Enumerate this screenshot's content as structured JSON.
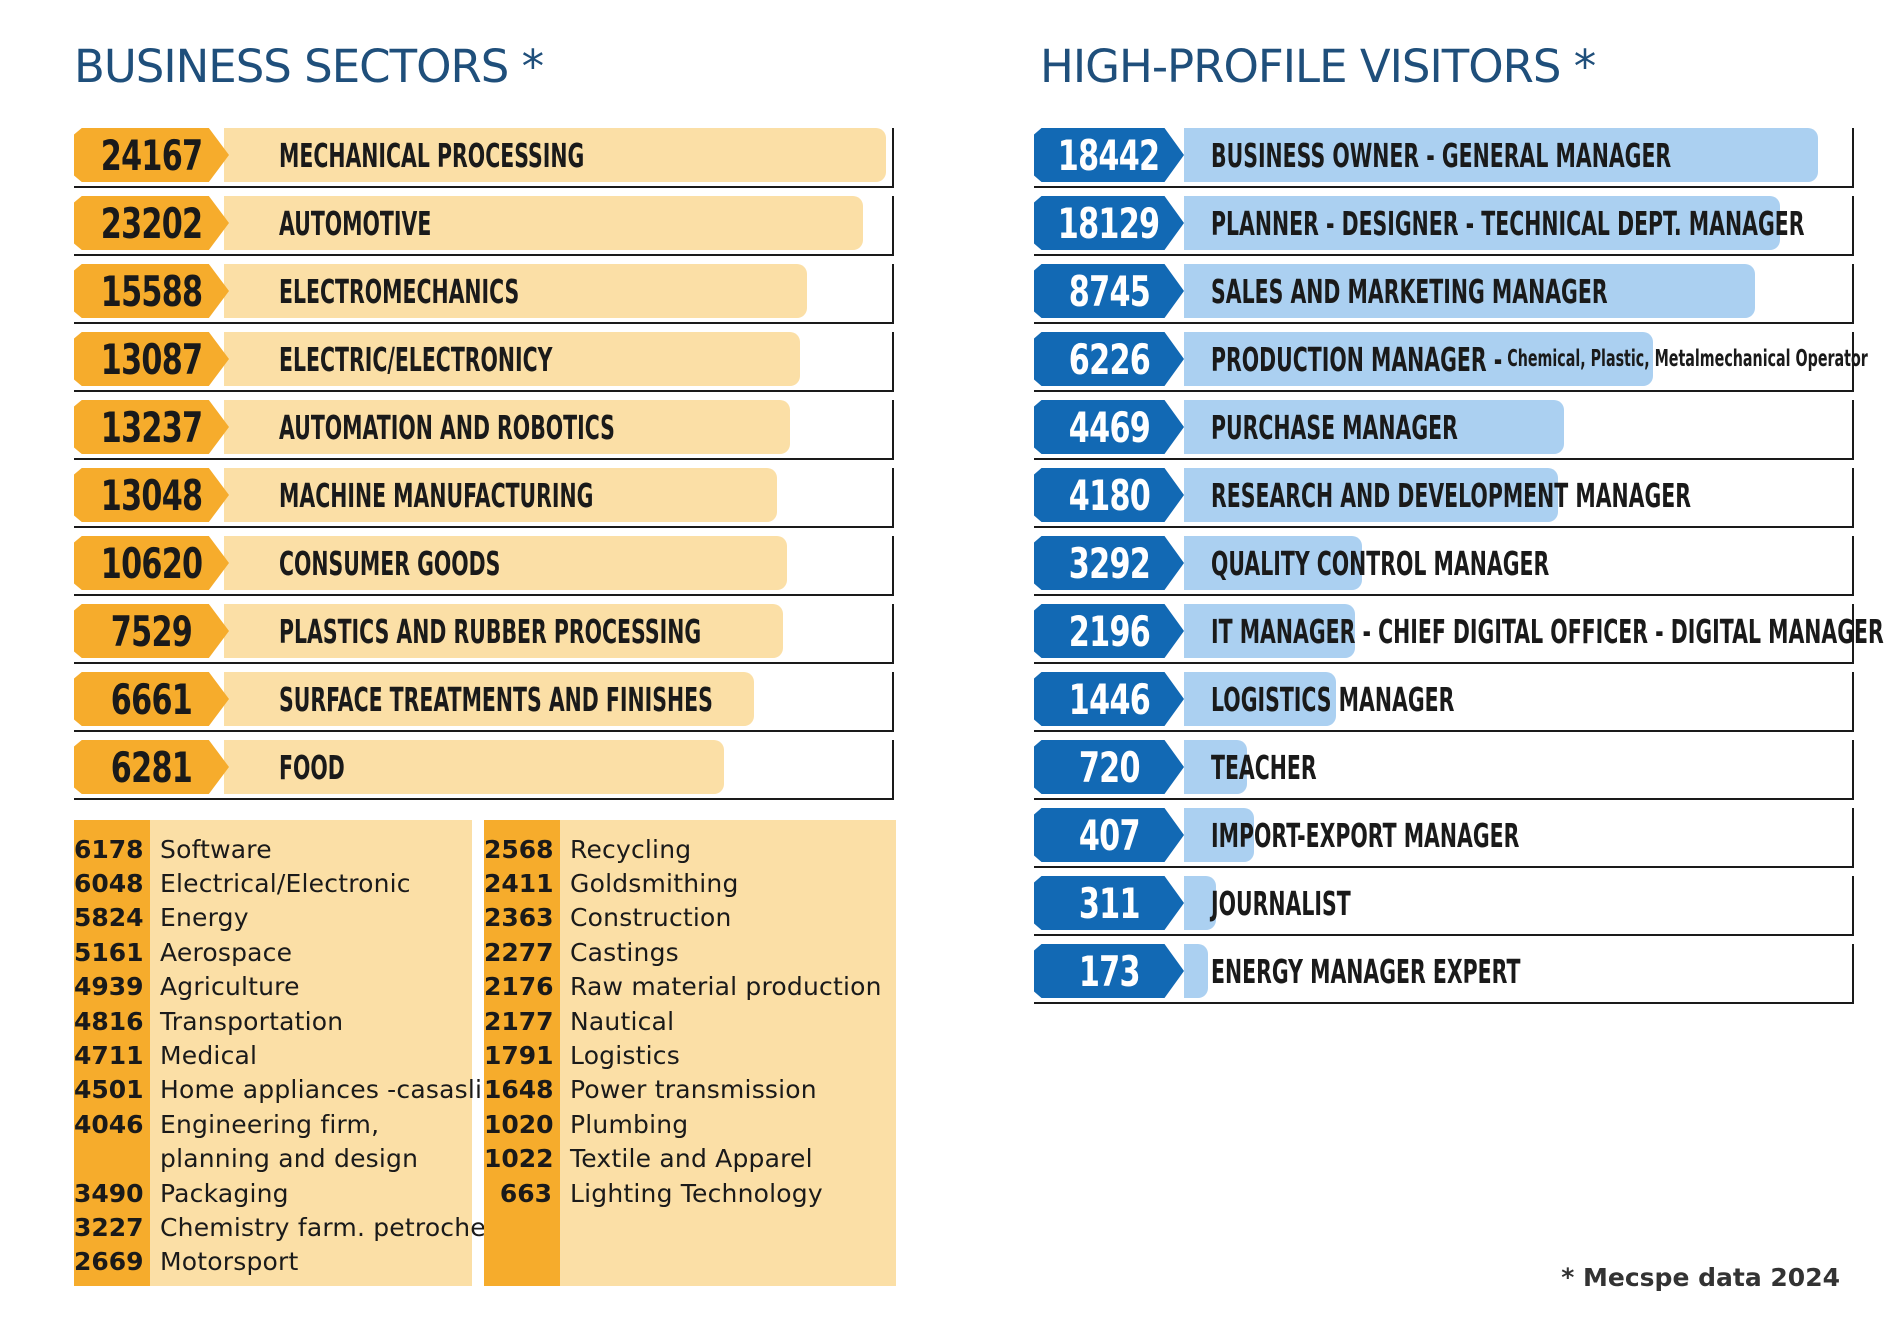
{
  "chart_data": [
    {
      "type": "bar",
      "title": "BUSINESS SECTORS *",
      "categories": [
        "MECHANICAL PROCESSING",
        "AUTOMOTIVE",
        "ELECTROMECHANICS",
        "ELECTRIC/ELECTRONICY",
        "AUTOMATION AND ROBOTICS",
        "MACHINE MANUFACTURING",
        "CONSUMER GOODS",
        "PLASTICS AND RUBBER PROCESSING",
        "SURFACE TREATMENTS AND FINISHES",
        "FOOD"
      ],
      "values": [
        24167,
        23202,
        15588,
        13087,
        13237,
        13048,
        10620,
        7529,
        6661,
        6281
      ],
      "value_labels": [
        "24167",
        "23202",
        "15588",
        "13087",
        "13237",
        "13048",
        "10620",
        "7529",
        "6661",
        "6281"
      ],
      "bar_fill_fraction": [
        1.0,
        0.965,
        0.88,
        0.87,
        0.855,
        0.835,
        0.85,
        0.845,
        0.8,
        0.755
      ],
      "colors": {
        "badge": "#f6ac2c",
        "bar": "#fbdfa6"
      }
    },
    {
      "type": "bar",
      "title": "HIGH-PROFILE VISITORS *",
      "categories": [
        "BUSINESS OWNER - GENERAL MANAGER",
        "PLANNER - DESIGNER - TECHNICAL DEPT. MANAGER",
        "SALES AND MARKETING MANAGER",
        "PRODUCTION MANAGER -",
        "PURCHASE MANAGER",
        "RESEARCH AND DEVELOPMENT MANAGER",
        "QUALITY CONTROL MANAGER",
        "IT MANAGER - CHIEF DIGITAL OFFICER - DIGITAL MANAGER",
        "LOGISTICS MANAGER",
        "TEACHER",
        "IMPORT-EXPORT MANAGER",
        "JOURNALIST",
        "ENERGY MANAGER EXPERT"
      ],
      "category_notes": [
        "",
        "",
        "",
        "Chemical, Plastic, Metalmechanical Operator",
        "",
        "",
        "",
        "",
        "",
        "",
        "",
        "",
        ""
      ],
      "values": [
        18442,
        18129,
        8745,
        6226,
        4469,
        4180,
        3292,
        2196,
        1446,
        720,
        407,
        311,
        173
      ],
      "value_labels": [
        "18442",
        "18129",
        "8745",
        "6226",
        "4469",
        "4180",
        "3292",
        "2196",
        "1446",
        "720",
        "407",
        "311",
        "173"
      ],
      "bar_fill_fraction": [
        1.0,
        0.94,
        0.9,
        0.74,
        0.6,
        0.59,
        0.28,
        0.27,
        0.24,
        0.1,
        0.11,
        0.05,
        0.03
      ],
      "colors": {
        "badge": "#1269b4",
        "bar": "#abd0f1"
      }
    }
  ],
  "minor_sectors": {
    "left": [
      {
        "num": "6178",
        "label": "Software"
      },
      {
        "num": "6048",
        "label": "Electrical/Electronic"
      },
      {
        "num": "5824",
        "label": "Energy"
      },
      {
        "num": "5161",
        "label": "Aerospace"
      },
      {
        "num": "4939",
        "label": "Agriculture"
      },
      {
        "num": "4816",
        "label": "Transportation"
      },
      {
        "num": "4711",
        "label": "Medical"
      },
      {
        "num": "4501",
        "label": "Home appliances -casaslinghi"
      },
      {
        "num": "4046",
        "label": "Engineering firm,"
      },
      {
        "num": "",
        "label": "planning and design"
      },
      {
        "num": "3490",
        "label": "Packaging"
      },
      {
        "num": "3227",
        "label": "Chemistry farm. petrochemical"
      },
      {
        "num": "2669",
        "label": "Motorsport"
      }
    ],
    "right": [
      {
        "num": "2568",
        "label": "Recycling"
      },
      {
        "num": "2411",
        "label": "Goldsmithing"
      },
      {
        "num": "2363",
        "label": "Construction"
      },
      {
        "num": "2277",
        "label": "Castings"
      },
      {
        "num": "2176",
        "label": "Raw material production"
      },
      {
        "num": "2177",
        "label": "Nautical"
      },
      {
        "num": "1791",
        "label": "Logistics"
      },
      {
        "num": "1648",
        "label": "Power transmission"
      },
      {
        "num": "1020",
        "label": "Plumbing"
      },
      {
        "num": "1022",
        "label": "Textile and Apparel"
      },
      {
        "num": "663",
        "label": "Lighting Technology"
      }
    ]
  },
  "footnote": "* Mecspe data 2024"
}
